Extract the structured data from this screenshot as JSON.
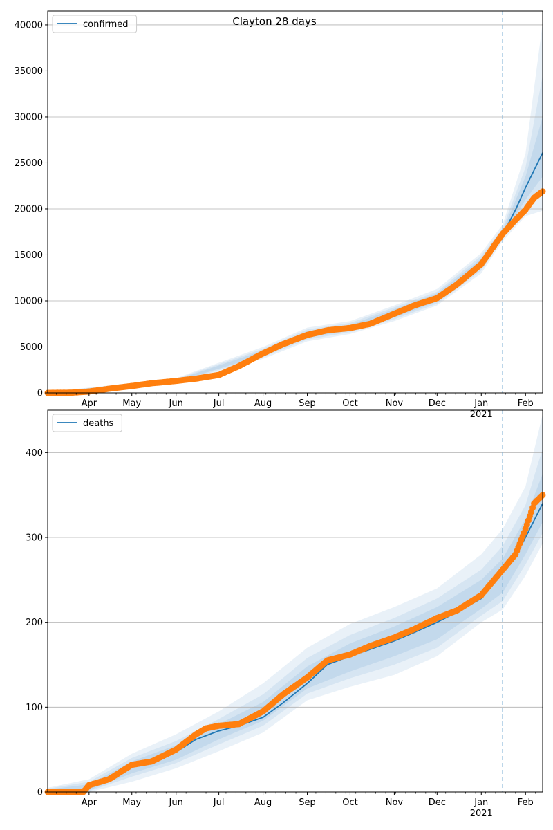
{
  "chart_data": [
    {
      "type": "line",
      "title": "Clayton 28 days",
      "x_tick_labels": [
        "Apr",
        "May",
        "Jun",
        "Jul",
        "Aug",
        "Sep",
        "Oct",
        "Nov",
        "Dec",
        "Jan\n2021",
        "Feb"
      ],
      "x_tick_dates": [
        "2020-04-01",
        "2020-05-01",
        "2020-06-01",
        "2020-07-01",
        "2020-08-01",
        "2020-09-01",
        "2020-10-01",
        "2020-11-01",
        "2020-12-01",
        "2021-01-01",
        "2021-02-01"
      ],
      "xlim": [
        "2020-03-03",
        "2021-02-13"
      ],
      "ylim": [
        0,
        41500
      ],
      "y_ticks": [
        0,
        5000,
        10000,
        15000,
        20000,
        25000,
        30000,
        35000,
        40000
      ],
      "grid": "y",
      "legend_position": "top-left",
      "forecast_start": "2021-01-16",
      "series": [
        {
          "name": "confirmed",
          "kind": "model-line",
          "color": "#1f77b4",
          "x": [
            "2020-03-03",
            "2020-03-20",
            "2020-04-01",
            "2020-04-15",
            "2020-05-01",
            "2020-05-15",
            "2020-06-01",
            "2020-06-15",
            "2020-07-01",
            "2020-07-15",
            "2020-08-01",
            "2020-08-15",
            "2020-09-01",
            "2020-09-15",
            "2020-10-01",
            "2020-10-15",
            "2020-11-01",
            "2020-11-15",
            "2020-12-01",
            "2020-12-15",
            "2021-01-01",
            "2021-01-16",
            "2021-01-25",
            "2021-02-01",
            "2021-02-13"
          ],
          "y": [
            0,
            30,
            150,
            450,
            750,
            1050,
            1300,
            1550,
            1950,
            2900,
            4300,
            5300,
            6300,
            6800,
            7050,
            7500,
            8600,
            9500,
            10300,
            11800,
            14000,
            17200,
            19900,
            22300,
            26100
          ]
        },
        {
          "name": "",
          "kind": "observed",
          "color": "#ff7f0e",
          "x": [
            "2020-03-03",
            "2020-03-20",
            "2020-04-01",
            "2020-04-15",
            "2020-05-01",
            "2020-05-15",
            "2020-06-01",
            "2020-06-15",
            "2020-07-01",
            "2020-07-15",
            "2020-08-01",
            "2020-08-15",
            "2020-09-01",
            "2020-09-15",
            "2020-10-01",
            "2020-10-15",
            "2020-11-01",
            "2020-11-15",
            "2020-12-01",
            "2020-12-15",
            "2021-01-01",
            "2021-01-16",
            "2021-01-25",
            "2021-02-01",
            "2021-02-07",
            "2021-02-13"
          ],
          "y": [
            0,
            30,
            150,
            450,
            750,
            1050,
            1300,
            1550,
            1950,
            2900,
            4300,
            5300,
            6300,
            6800,
            7050,
            7500,
            8600,
            9500,
            10300,
            11800,
            14000,
            17300,
            18800,
            19900,
            21200,
            21900
          ]
        }
      ],
      "bands": [
        {
          "x": [
            "2020-03-03",
            "2020-06-01",
            "2020-08-01",
            "2020-09-01",
            "2020-10-01",
            "2020-11-01",
            "2020-12-01",
            "2021-01-01",
            "2021-01-16",
            "2021-02-01",
            "2021-02-13"
          ],
          "lower": [
            0,
            1000,
            3700,
            5600,
            6400,
            7800,
            9500,
            13000,
            16500,
            19200,
            19800
          ],
          "upper": [
            100,
            1600,
            5000,
            7100,
            7800,
            9500,
            11300,
            15200,
            18300,
            26000,
            40200
          ]
        },
        {
          "x": [
            "2020-03-03",
            "2020-06-01",
            "2020-08-01",
            "2020-09-01",
            "2020-10-01",
            "2020-11-01",
            "2020-12-01",
            "2021-01-01",
            "2021-01-16",
            "2021-02-01",
            "2021-02-13"
          ],
          "lower": [
            0,
            1100,
            3900,
            5800,
            6600,
            8000,
            9700,
            13300,
            16800,
            20200,
            21500
          ],
          "upper": [
            80,
            1500,
            4800,
            6900,
            7600,
            9300,
            11000,
            14900,
            17900,
            24500,
            34500
          ]
        },
        {
          "x": [
            "2020-03-03",
            "2020-06-01",
            "2020-08-01",
            "2020-09-01",
            "2020-10-01",
            "2020-11-01",
            "2020-12-01",
            "2021-01-01",
            "2021-01-16",
            "2021-02-01",
            "2021-02-13"
          ],
          "lower": [
            0,
            1200,
            4100,
            6000,
            6800,
            8200,
            9900,
            13600,
            17000,
            21000,
            23500
          ],
          "upper": [
            60,
            1400,
            4600,
            6700,
            7400,
            9100,
            10800,
            14600,
            17600,
            23500,
            30000
          ]
        }
      ]
    },
    {
      "type": "line",
      "title": "",
      "x_tick_labels": [
        "Apr",
        "May",
        "Jun",
        "Jul",
        "Aug",
        "Sep",
        "Oct",
        "Nov",
        "Dec",
        "Jan\n2021",
        "Feb"
      ],
      "x_tick_dates": [
        "2020-04-01",
        "2020-05-01",
        "2020-06-01",
        "2020-07-01",
        "2020-08-01",
        "2020-09-01",
        "2020-10-01",
        "2020-11-01",
        "2020-12-01",
        "2021-01-01",
        "2021-02-01"
      ],
      "xlim": [
        "2020-03-03",
        "2021-02-13"
      ],
      "ylim": [
        0,
        450
      ],
      "y_ticks": [
        0,
        100,
        200,
        300,
        400
      ],
      "grid": "y",
      "legend_position": "top-left",
      "forecast_start": "2021-01-16",
      "series": [
        {
          "name": "deaths",
          "kind": "model-line",
          "color": "#1f77b4",
          "x": [
            "2020-03-03",
            "2020-03-28",
            "2020-04-01",
            "2020-04-15",
            "2020-05-01",
            "2020-05-15",
            "2020-06-01",
            "2020-06-15",
            "2020-07-01",
            "2020-07-15",
            "2020-08-01",
            "2020-08-15",
            "2020-09-01",
            "2020-09-15",
            "2020-10-01",
            "2020-10-15",
            "2020-11-01",
            "2020-11-15",
            "2020-12-01",
            "2020-12-15",
            "2021-01-01",
            "2021-01-16",
            "2021-01-25",
            "2021-02-01",
            "2021-02-13"
          ],
          "y": [
            0,
            0,
            5,
            15,
            30,
            38,
            47,
            62,
            72,
            78,
            88,
            105,
            128,
            150,
            160,
            168,
            178,
            188,
            200,
            212,
            228,
            258,
            278,
            300,
            340
          ]
        },
        {
          "name": "",
          "kind": "observed",
          "color": "#ff7f0e",
          "x": [
            "2020-03-03",
            "2020-03-28",
            "2020-04-01",
            "2020-04-15",
            "2020-05-01",
            "2020-05-15",
            "2020-06-01",
            "2020-06-15",
            "2020-06-22",
            "2020-07-01",
            "2020-07-15",
            "2020-08-01",
            "2020-08-15",
            "2020-09-01",
            "2020-09-15",
            "2020-10-01",
            "2020-10-15",
            "2020-11-01",
            "2020-11-15",
            "2020-12-01",
            "2020-12-15",
            "2021-01-01",
            "2021-01-16",
            "2021-01-25",
            "2021-02-01",
            "2021-02-07",
            "2021-02-13"
          ],
          "y": [
            0,
            0,
            8,
            15,
            32,
            36,
            50,
            68,
            75,
            78,
            80,
            95,
            115,
            135,
            155,
            162,
            172,
            182,
            192,
            205,
            214,
            232,
            262,
            280,
            310,
            340,
            350
          ]
        }
      ],
      "bands": [
        {
          "x": [
            "2020-03-03",
            "2020-04-01",
            "2020-05-01",
            "2020-06-01",
            "2020-07-01",
            "2020-08-01",
            "2020-09-01",
            "2020-10-01",
            "2020-11-01",
            "2020-12-01",
            "2021-01-01",
            "2021-01-16",
            "2021-02-01",
            "2021-02-13"
          ],
          "lower": [
            0,
            0,
            12,
            28,
            48,
            70,
            108,
            124,
            138,
            160,
            200,
            215,
            255,
            293
          ],
          "upper": [
            5,
            15,
            45,
            68,
            95,
            128,
            170,
            198,
            218,
            240,
            280,
            310,
            360,
            445
          ]
        },
        {
          "x": [
            "2020-03-03",
            "2020-04-01",
            "2020-05-01",
            "2020-06-01",
            "2020-07-01",
            "2020-08-01",
            "2020-09-01",
            "2020-10-01",
            "2020-11-01",
            "2020-12-01",
            "2021-01-01",
            "2021-01-16",
            "2021-02-01",
            "2021-02-13"
          ],
          "lower": [
            0,
            1,
            18,
            34,
            56,
            78,
            116,
            134,
            150,
            170,
            208,
            225,
            268,
            305
          ],
          "upper": [
            4,
            12,
            40,
            60,
            86,
            115,
            158,
            185,
            205,
            228,
            262,
            290,
            338,
            405
          ]
        },
        {
          "x": [
            "2020-03-03",
            "2020-04-01",
            "2020-05-01",
            "2020-06-01",
            "2020-07-01",
            "2020-08-01",
            "2020-09-01",
            "2020-10-01",
            "2020-11-01",
            "2020-12-01",
            "2021-01-01",
            "2021-01-16",
            "2021-02-01",
            "2021-02-13"
          ],
          "lower": [
            0,
            2,
            22,
            38,
            62,
            84,
            122,
            142,
            160,
            180,
            216,
            235,
            280,
            318
          ],
          "upper": [
            3,
            9,
            36,
            55,
            80,
            106,
            148,
            175,
            195,
            218,
            250,
            275,
            322,
            375
          ]
        }
      ]
    }
  ]
}
